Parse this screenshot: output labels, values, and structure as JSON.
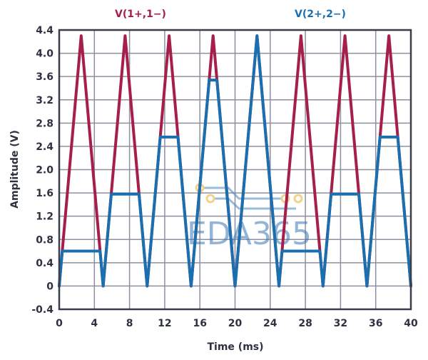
{
  "chart_data": {
    "type": "line",
    "title": "",
    "xlabel": "Time (ms)",
    "ylabel": "Amplitude (V)",
    "xlim": [
      0,
      40
    ],
    "ylim": [
      -0.4,
      4.4
    ],
    "xticks": [
      "0",
      "4",
      "8",
      "12",
      "16",
      "20",
      "24",
      "28",
      "32",
      "36",
      "40"
    ],
    "xtick_values": [
      0,
      4,
      8,
      12,
      16,
      20,
      24,
      28,
      32,
      36,
      40
    ],
    "yticks": [
      "4.4",
      "4.0",
      "3.6",
      "3.2",
      "2.8",
      "2.4",
      "2.0",
      "1.6",
      "1.2",
      "0.8",
      "0.4",
      "0",
      "-0.4"
    ],
    "ytick_values": [
      4.4,
      4.0,
      3.6,
      3.2,
      2.8,
      2.4,
      2.0,
      1.6,
      1.2,
      0.8,
      0.4,
      0,
      -0.4
    ],
    "grid": true,
    "legend_placement": "top",
    "series": [
      {
        "name": "V(1+,1−)",
        "color": "#a61e4a",
        "x": [
          0,
          2.5,
          5,
          7.5,
          10,
          12.5,
          15,
          17.5,
          20,
          22.5,
          25,
          27.5,
          30,
          32.5,
          35,
          37.5,
          40
        ],
        "y": [
          0,
          4.3,
          0,
          4.3,
          0,
          4.3,
          0,
          4.3,
          0,
          4.3,
          0,
          4.3,
          0,
          4.3,
          0,
          4.3,
          0
        ]
      },
      {
        "name": "V(2+,2−)",
        "color": "#1a6fb0",
        "x": [
          0,
          0.35,
          4.65,
          5,
          5.92,
          9.08,
          10,
          11.49,
          13.51,
          15,
          17.06,
          17.94,
          20,
          22.5,
          25,
          25.35,
          29.65,
          30,
          30.92,
          34.08,
          35,
          36.49,
          38.51,
          40
        ],
        "y": [
          0,
          0.6,
          0.6,
          0,
          1.58,
          1.58,
          0,
          2.56,
          2.56,
          0,
          3.54,
          3.54,
          0,
          4.3,
          0,
          0.6,
          0.6,
          0,
          1.58,
          1.58,
          0,
          2.56,
          2.56,
          0
        ]
      }
    ]
  },
  "watermark": "EDA365"
}
